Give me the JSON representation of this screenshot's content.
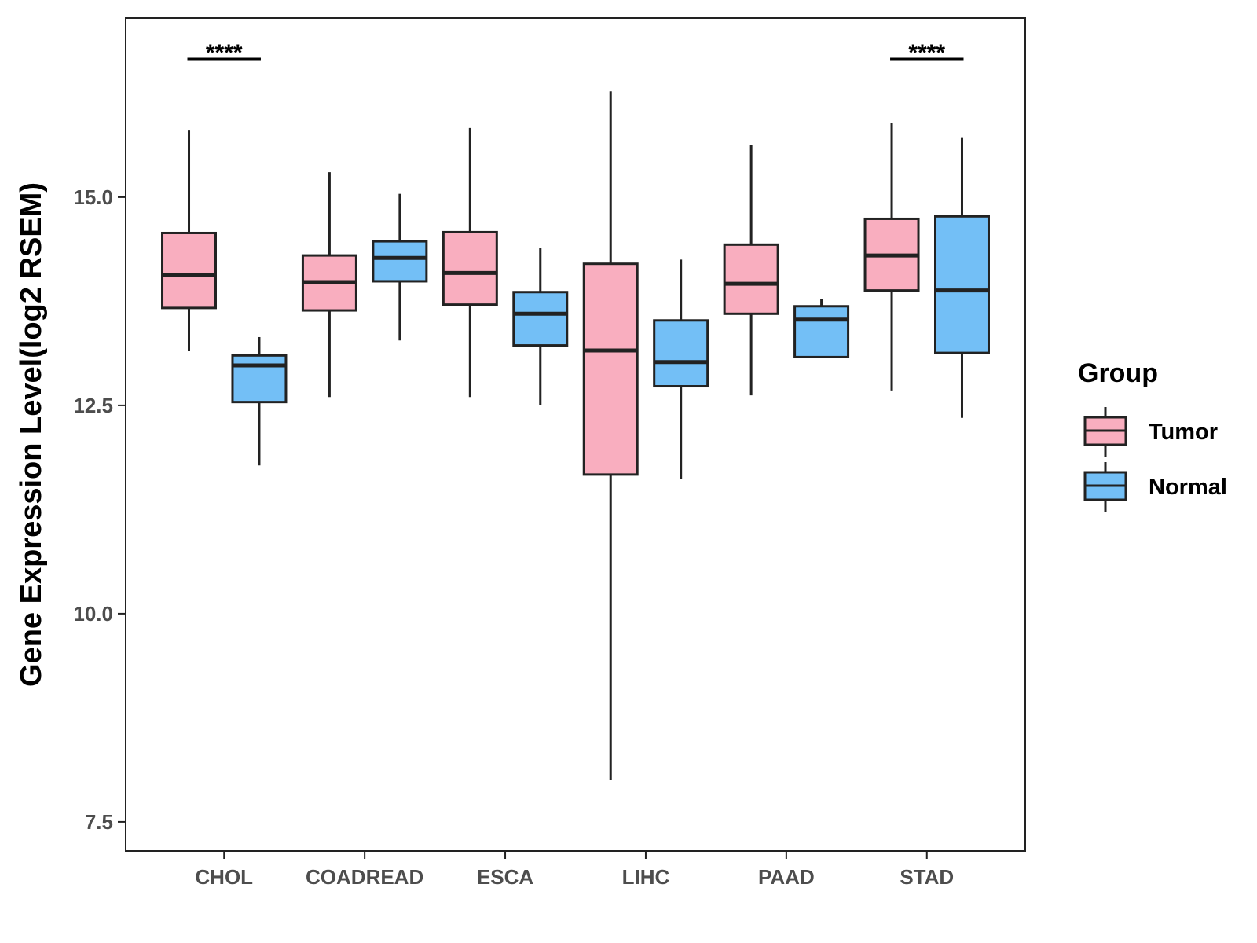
{
  "chart_data": {
    "type": "boxplot",
    "title": "",
    "xlabel": "",
    "ylabel": "Gene Expression Level(log2 RSEM)",
    "ylim": [
      7.15,
      17.15
    ],
    "yticks": [
      7.5,
      10.0,
      12.5,
      15.0
    ],
    "ytick_labels": [
      "7.5",
      "10.0",
      "12.5",
      "15.0"
    ],
    "categories": [
      "CHOL",
      "COADREAD",
      "ESCA",
      "LIHC",
      "PAAD",
      "STAD"
    ],
    "legend": {
      "title": "Group",
      "position": "right",
      "entries": [
        "Tumor",
        "Normal"
      ]
    },
    "colors": {
      "Tumor": "#f9aebf",
      "Normal": "#73bff6",
      "outline": "#222222"
    },
    "series": [
      {
        "name": "Tumor",
        "boxes": [
          {
            "category": "CHOL",
            "min": 13.15,
            "q1": 13.67,
            "median": 14.07,
            "q3": 14.57,
            "max": 15.8
          },
          {
            "category": "COADREAD",
            "min": 12.6,
            "q1": 13.64,
            "median": 13.98,
            "q3": 14.3,
            "max": 15.3
          },
          {
            "category": "ESCA",
            "min": 12.6,
            "q1": 13.71,
            "median": 14.09,
            "q3": 14.58,
            "max": 15.83
          },
          {
            "category": "LIHC",
            "min": 8.0,
            "q1": 11.67,
            "median": 13.16,
            "q3": 14.2,
            "max": 16.27
          },
          {
            "category": "PAAD",
            "min": 12.62,
            "q1": 13.6,
            "median": 13.96,
            "q3": 14.43,
            "max": 15.63
          },
          {
            "category": "STAD",
            "min": 12.68,
            "q1": 13.88,
            "median": 14.3,
            "q3": 14.74,
            "max": 15.89
          }
        ]
      },
      {
        "name": "Normal",
        "boxes": [
          {
            "category": "CHOL",
            "min": 11.78,
            "q1": 12.54,
            "median": 12.98,
            "q3": 13.1,
            "max": 13.32
          },
          {
            "category": "COADREAD",
            "min": 13.28,
            "q1": 13.99,
            "median": 14.27,
            "q3": 14.47,
            "max": 15.04
          },
          {
            "category": "ESCA",
            "min": 12.5,
            "q1": 13.22,
            "median": 13.6,
            "q3": 13.86,
            "max": 14.39
          },
          {
            "category": "LIHC",
            "min": 11.62,
            "q1": 12.73,
            "median": 13.02,
            "q3": 13.52,
            "max": 14.25
          },
          {
            "category": "PAAD",
            "min": 13.08,
            "q1": 13.08,
            "median": 13.53,
            "q3": 13.69,
            "max": 13.78
          },
          {
            "category": "STAD",
            "min": 12.35,
            "q1": 13.13,
            "median": 13.88,
            "q3": 14.77,
            "max": 15.72
          }
        ]
      }
    ],
    "annotations": [
      {
        "category": "CHOL",
        "text": "****"
      },
      {
        "category": "STAD",
        "text": "****"
      }
    ]
  }
}
